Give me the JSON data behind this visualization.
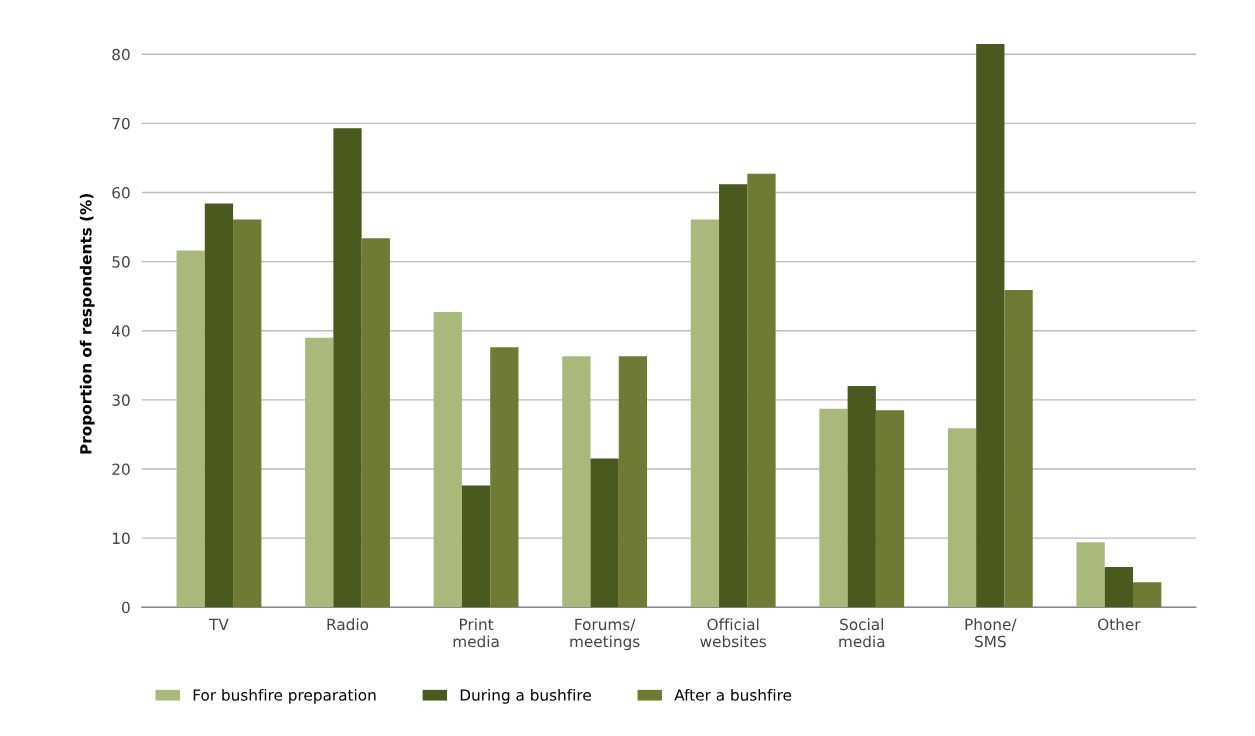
{
  "chart_data": {
    "type": "bar",
    "ylabel": "Proportion of respondents (%)",
    "categories": [
      "TV",
      "Radio",
      "Print\nmedia",
      "Forums/\nmeetings",
      "Official\nwebsites",
      "Social\nmedia",
      "Phone/\nSMS",
      "Other"
    ],
    "series": [
      {
        "name": "For bushfire preparation",
        "color": "#a9b97c",
        "values": [
          51.6,
          39,
          42.7,
          36.3,
          56.1,
          28.7,
          25.9,
          9.4
        ]
      },
      {
        "name": "During a bushfire",
        "color": "#4a5a1f",
        "values": [
          58.4,
          69.3,
          17.6,
          21.5,
          61.2,
          32,
          81.5,
          5.8
        ]
      },
      {
        "name": "After a bushfire",
        "color": "#6f7b35",
        "values": [
          56.1,
          53.4,
          37.6,
          36.3,
          62.7,
          28.5,
          45.9,
          3.6
        ]
      }
    ],
    "ylim": [
      0,
      82
    ],
    "yticks": [
      0,
      10,
      20,
      30,
      40,
      50,
      60,
      70,
      80
    ],
    "grid": "y",
    "legend": "bottom"
  }
}
